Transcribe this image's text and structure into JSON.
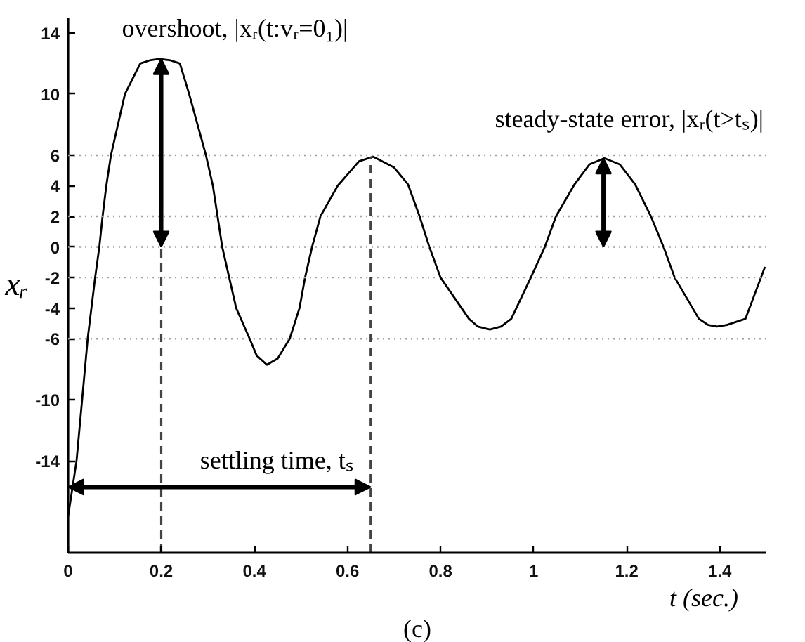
{
  "chart_data": {
    "type": "line",
    "xlabel": "t (sec.)",
    "ylabel": "xᵣ",
    "x": [
      0.0,
      0.018,
      0.03,
      0.042,
      0.05,
      0.058,
      0.067,
      0.074,
      0.082,
      0.092,
      0.122,
      0.155,
      0.175,
      0.196,
      0.22,
      0.24,
      0.26,
      0.296,
      0.311,
      0.321,
      0.331,
      0.346,
      0.361,
      0.39,
      0.405,
      0.427,
      0.45,
      0.476,
      0.497,
      0.509,
      0.524,
      0.542,
      0.579,
      0.625,
      0.655,
      0.7,
      0.73,
      0.755,
      0.776,
      0.8,
      0.861,
      0.88,
      0.906,
      0.93,
      0.952,
      0.994,
      1.024,
      1.048,
      1.088,
      1.12,
      1.152,
      1.185,
      1.218,
      1.252,
      1.279,
      1.303,
      1.355,
      1.375,
      1.394,
      1.415,
      1.455,
      1.497
    ],
    "series": [
      {
        "color": "#000000",
        "values": [
          -17.6,
          -14,
          -10,
          -6,
          -4,
          -2,
          0,
          2,
          4,
          6,
          10,
          12,
          12.2,
          12.3,
          12.2,
          12,
          10,
          6,
          4,
          2,
          0,
          -2,
          -4,
          -6,
          -7.1,
          -7.7,
          -7.3,
          -6,
          -4,
          -2,
          0,
          2,
          4,
          5.6,
          5.9,
          5.2,
          4.1,
          2,
          0,
          -2,
          -4.7,
          -5.2,
          -5.4,
          -5.2,
          -4.7,
          -2,
          0,
          2,
          4.1,
          5.4,
          5.8,
          5.4,
          4.1,
          2,
          0,
          -2,
          -4.7,
          -5.1,
          -5.2,
          -5.1,
          -4.7,
          -1.3
        ]
      }
    ],
    "xlim": [
      0,
      1.5
    ],
    "ylim": [
      -20,
      15
    ],
    "xticks": [
      0,
      0.2,
      0.4,
      0.6,
      0.8,
      1,
      1.2,
      1.4
    ],
    "yticks": [
      14,
      10,
      6,
      4,
      2,
      0,
      -2,
      -4,
      -6,
      -10,
      -14
    ],
    "ref_lines": [
      {
        "axis": "y",
        "value": 6,
        "color": "#a0a0a0",
        "line_style": "dotted"
      },
      {
        "axis": "y",
        "value": 2,
        "color": "#a0a0a0",
        "line_style": "dotted"
      },
      {
        "axis": "y",
        "value": 0,
        "color": "#a0a0a0",
        "line_style": "dotted"
      },
      {
        "axis": "y",
        "value": -2,
        "color": "#a0a0a0",
        "line_style": "dotted"
      },
      {
        "axis": "y",
        "value": -6,
        "color": "#a0a0a0",
        "line_style": "dotted"
      },
      {
        "axis": "x",
        "value": 0.2,
        "color": "#444444",
        "line_style": "dashed"
      },
      {
        "axis": "x",
        "value": 0.65,
        "color": "#444444",
        "line_style": "dashed"
      }
    ],
    "annotations": [
      {
        "text": "overshoot, |xᵣ(t:vᵣ=0₁)|",
        "x": 0.2,
        "y": 12.3
      },
      {
        "text": "steady-state error, |xᵣ(t>tₛ)|",
        "x": 1.15,
        "y": 5.8
      },
      {
        "text": "settling time, tₛ",
        "x": 0.65,
        "y": -15.7
      },
      "(c)"
    ],
    "grid": false,
    "line_style": "solid"
  }
}
